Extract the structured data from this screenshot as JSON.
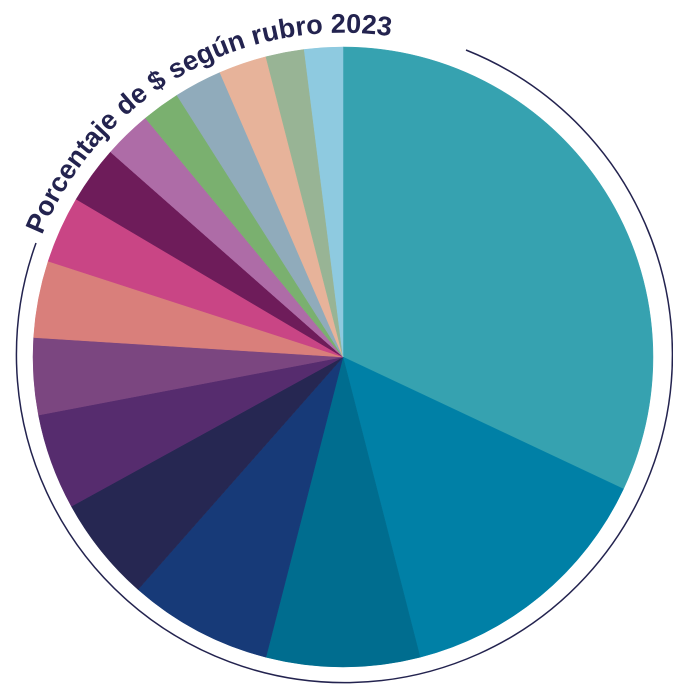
{
  "chart_data": {
    "type": "pie",
    "title": "Porcentaje de $ según rubro 2023",
    "categories": [
      null,
      null,
      null,
      null,
      null,
      null,
      null,
      null,
      null,
      null,
      null,
      null,
      null,
      null,
      null,
      null
    ],
    "values": [
      32,
      14,
      8,
      7.5,
      5.5,
      5,
      4,
      4,
      3.5,
      3,
      2.5,
      2,
      2.5,
      2.5,
      2,
      2
    ],
    "colors": [
      "#36a2b0",
      "#0080a6",
      "#006d8f",
      "#173a78",
      "#262752",
      "#562c6e",
      "#7b4680",
      "#d97f7b",
      "#c94585",
      "#6e1c5a",
      "#ae6ca7",
      "#7ab06f",
      "#90abbb",
      "#e7b39a",
      "#98b495",
      "#8ecae0"
    ]
  }
}
